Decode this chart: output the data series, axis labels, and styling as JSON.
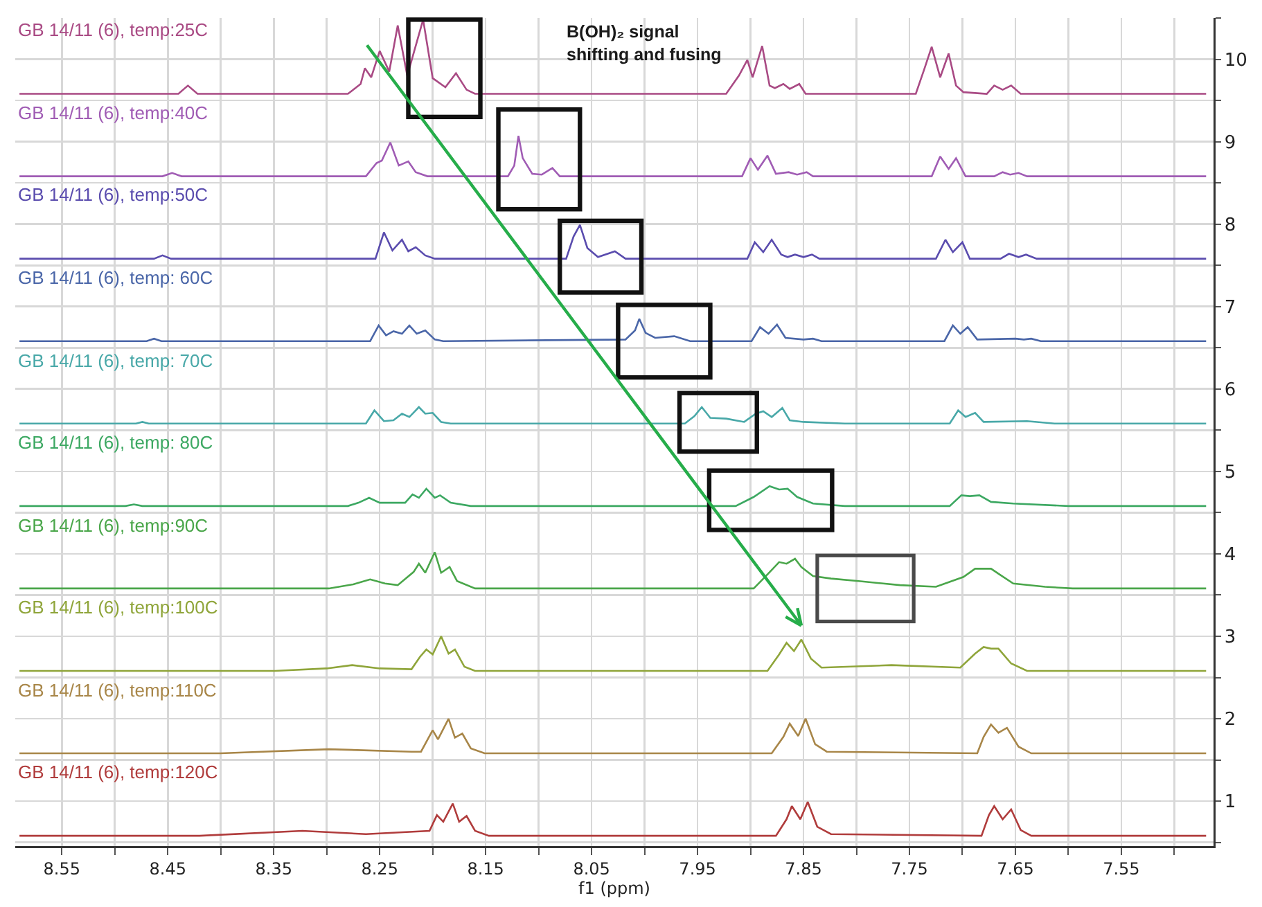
{
  "chart_data": {
    "type": "line",
    "xlabel": "f1 (ppm)",
    "annotations": [
      "B(OH)₂ signal shifting and fusing"
    ],
    "xlim": [
      8.594,
      7.463
    ],
    "ylim": [
      0.455,
      10.5
    ],
    "xticks": [
      8.55,
      {
        "value": 8.5,
        "label": null
      },
      8.45,
      {
        "value": 8.4,
        "label": null
      },
      8.35,
      {
        "value": 8.3,
        "label": null
      },
      8.25,
      {
        "value": 8.2,
        "label": null
      },
      8.15,
      {
        "value": 8.1,
        "label": null
      },
      8.05,
      {
        "value": 8.0,
        "label": null
      },
      7.95,
      {
        "value": 7.9,
        "label": null
      },
      7.85,
      {
        "value": 7.8,
        "label": null
      },
      7.75,
      {
        "value": 7.7,
        "label": null
      },
      7.65,
      {
        "value": 7.6,
        "label": null
      },
      7.55,
      {
        "value": 7.5,
        "label": null
      }
    ],
    "yticks": [
      {
        "value": 0.5,
        "label": null
      },
      1,
      {
        "value": 1.5,
        "label": null
      },
      2,
      {
        "value": 2.5,
        "label": null
      },
      3,
      {
        "value": 3.5,
        "label": null
      },
      4,
      {
        "value": 4.5,
        "label": null
      },
      5,
      {
        "value": 5.5,
        "label": null
      },
      6,
      {
        "value": 6.5,
        "label": null
      },
      7,
      {
        "value": 7.5,
        "label": null
      },
      8,
      {
        "value": 8.5,
        "label": null
      },
      9,
      {
        "value": 9.5,
        "label": null
      },
      10,
      {
        "value": 10.5,
        "label": null
      }
    ],
    "grid": true,
    "legend": false,
    "series": [
      {
        "name": "GB 14/11 (6), temp:25C",
        "color": "#a94a84",
        "x": [
          8.59,
          8.44,
          8.431,
          8.422,
          8.28,
          8.268,
          8.264,
          8.258,
          8.25,
          8.241,
          8.233,
          8.224,
          8.209,
          8.2,
          8.188,
          8.178,
          8.168,
          8.16,
          7.923,
          7.911,
          7.903,
          7.898,
          7.889,
          7.882,
          7.877,
          7.869,
          7.863,
          7.854,
          7.848,
          7.744,
          7.736,
          7.729,
          7.721,
          7.713,
          7.706,
          7.699,
          7.677,
          7.67,
          7.662,
          7.654,
          7.645,
          7.47
        ],
        "values": [
          9.58,
          9.58,
          9.68,
          9.58,
          9.58,
          9.7,
          9.89,
          9.78,
          10.1,
          9.85,
          10.41,
          9.8,
          10.48,
          9.77,
          9.66,
          9.83,
          9.63,
          9.58,
          9.58,
          9.8,
          9.99,
          9.78,
          10.16,
          9.68,
          9.65,
          9.7,
          9.64,
          9.7,
          9.58,
          9.58,
          9.88,
          10.15,
          9.78,
          10.07,
          9.68,
          9.6,
          9.58,
          9.68,
          9.63,
          9.68,
          9.58,
          9.58
        ]
      },
      {
        "name": "GB 14/11 (6), temp:40C",
        "color": "#a05cb4",
        "x": [
          8.59,
          8.455,
          8.446,
          8.437,
          8.263,
          8.253,
          8.248,
          8.24,
          8.232,
          8.223,
          8.216,
          8.205,
          8.129,
          8.123,
          8.119,
          8.115,
          8.106,
          8.097,
          8.087,
          8.08,
          7.908,
          7.9,
          7.893,
          7.884,
          7.876,
          7.864,
          7.856,
          7.847,
          7.841,
          7.729,
          7.721,
          7.713,
          7.706,
          7.697,
          7.67,
          7.662,
          7.655,
          7.647,
          7.639,
          7.47
        ],
        "values": [
          8.58,
          8.58,
          8.62,
          8.58,
          8.58,
          8.74,
          8.77,
          8.99,
          8.71,
          8.76,
          8.63,
          8.58,
          8.58,
          8.71,
          9.07,
          8.8,
          8.61,
          8.6,
          8.68,
          8.58,
          8.58,
          8.8,
          8.66,
          8.83,
          8.61,
          8.63,
          8.6,
          8.63,
          8.58,
          8.58,
          8.82,
          8.67,
          8.8,
          8.58,
          8.58,
          8.63,
          8.6,
          8.62,
          8.58,
          8.58
        ]
      },
      {
        "name": "GB 14/11 (6), temp:50C",
        "color": "#5a4cae",
        "x": [
          8.59,
          8.463,
          8.455,
          8.447,
          8.254,
          8.246,
          8.238,
          8.229,
          8.223,
          8.216,
          8.207,
          8.198,
          8.074,
          8.067,
          8.061,
          8.054,
          8.044,
          8.028,
          8.018,
          7.903,
          7.896,
          7.888,
          7.88,
          7.871,
          7.865,
          7.858,
          7.85,
          7.842,
          7.835,
          7.725,
          7.716,
          7.709,
          7.7,
          7.693,
          7.664,
          7.656,
          7.647,
          7.64,
          7.63,
          7.47
        ],
        "values": [
          7.58,
          7.58,
          7.62,
          7.58,
          7.58,
          7.9,
          7.68,
          7.81,
          7.67,
          7.72,
          7.62,
          7.58,
          7.58,
          7.85,
          7.99,
          7.71,
          7.6,
          7.67,
          7.58,
          7.58,
          7.78,
          7.66,
          7.81,
          7.63,
          7.6,
          7.63,
          7.6,
          7.63,
          7.58,
          7.58,
          7.81,
          7.66,
          7.78,
          7.58,
          7.58,
          7.64,
          7.6,
          7.63,
          7.58,
          7.58
        ]
      },
      {
        "name": "GB 14/11 (6), temp: 60C",
        "color": "#4a66a8",
        "x": [
          8.59,
          8.47,
          8.463,
          8.456,
          8.259,
          8.251,
          8.244,
          8.237,
          8.229,
          8.222,
          8.215,
          8.207,
          8.198,
          8.19,
          8.018,
          8.009,
          8.005,
          7.999,
          7.99,
          7.972,
          7.957,
          7.899,
          7.891,
          7.883,
          7.875,
          7.867,
          7.85,
          7.841,
          7.833,
          7.717,
          7.709,
          7.702,
          7.695,
          7.686,
          7.65,
          7.642,
          7.635,
          7.626,
          7.47
        ],
        "values": [
          6.58,
          6.58,
          6.61,
          6.58,
          6.58,
          6.77,
          6.65,
          6.7,
          6.67,
          6.77,
          6.67,
          6.71,
          6.6,
          6.58,
          6.6,
          6.71,
          6.85,
          6.68,
          6.62,
          6.64,
          6.58,
          6.58,
          6.75,
          6.67,
          6.78,
          6.62,
          6.6,
          6.61,
          6.58,
          6.58,
          6.77,
          6.67,
          6.75,
          6.6,
          6.61,
          6.6,
          6.61,
          6.58,
          6.58
        ]
      },
      {
        "name": "GB 14/11 (6), temp: 70C",
        "color": "#48a8a8",
        "x": [
          8.59,
          8.48,
          8.474,
          8.468,
          8.263,
          8.255,
          8.246,
          8.237,
          8.229,
          8.222,
          8.213,
          8.207,
          8.2,
          8.192,
          8.183,
          7.962,
          7.953,
          7.946,
          7.938,
          7.923,
          7.906,
          7.895,
          7.888,
          7.88,
          7.87,
          7.863,
          7.85,
          7.811,
          7.712,
          7.704,
          7.697,
          7.688,
          7.68,
          7.639,
          7.613,
          7.47
        ],
        "values": [
          5.58,
          5.58,
          5.6,
          5.58,
          5.58,
          5.74,
          5.61,
          5.62,
          5.7,
          5.66,
          5.78,
          5.7,
          5.71,
          5.6,
          5.58,
          5.58,
          5.67,
          5.78,
          5.65,
          5.64,
          5.6,
          5.7,
          5.73,
          5.66,
          5.77,
          5.62,
          5.6,
          5.58,
          5.58,
          5.74,
          5.66,
          5.71,
          5.6,
          5.61,
          5.58,
          5.58
        ]
      },
      {
        "name": "GB 14/11 (6), temp: 80C",
        "color": "#3ca862",
        "x": [
          8.59,
          8.49,
          8.482,
          8.474,
          8.28,
          8.27,
          8.26,
          8.25,
          8.226,
          8.219,
          8.213,
          8.206,
          8.198,
          8.193,
          8.183,
          8.164,
          7.914,
          7.897,
          7.882,
          7.873,
          7.865,
          7.856,
          7.841,
          7.811,
          7.712,
          7.701,
          7.693,
          7.684,
          7.673,
          7.652,
          7.6,
          7.47
        ],
        "values": [
          4.58,
          4.58,
          4.6,
          4.58,
          4.58,
          4.62,
          4.68,
          4.62,
          4.62,
          4.72,
          4.68,
          4.79,
          4.68,
          4.71,
          4.62,
          4.58,
          4.58,
          4.69,
          4.82,
          4.78,
          4.79,
          4.69,
          4.61,
          4.58,
          4.58,
          4.71,
          4.7,
          4.71,
          4.63,
          4.61,
          4.58,
          4.58
        ]
      },
      {
        "name": "GB 14/11 (6), temp:90C",
        "color": "#4aa64a",
        "x": [
          8.59,
          8.298,
          8.275,
          8.259,
          8.245,
          8.233,
          8.218,
          8.213,
          8.207,
          8.198,
          8.192,
          8.184,
          8.177,
          8.16,
          7.897,
          7.884,
          7.873,
          7.866,
          7.858,
          7.852,
          7.841,
          7.824,
          7.798,
          7.759,
          7.725,
          7.699,
          7.688,
          7.673,
          7.665,
          7.652,
          7.622,
          7.596,
          7.47
        ],
        "values": [
          3.58,
          3.58,
          3.63,
          3.69,
          3.64,
          3.62,
          3.78,
          3.88,
          3.77,
          4.02,
          3.77,
          3.84,
          3.67,
          3.58,
          3.58,
          3.75,
          3.9,
          3.88,
          3.94,
          3.84,
          3.73,
          3.7,
          3.67,
          3.62,
          3.6,
          3.72,
          3.82,
          3.82,
          3.75,
          3.64,
          3.6,
          3.58,
          3.58
        ]
      },
      {
        "name": "GB 14/11 (6), temp:100C",
        "color": "#8fa53a",
        "x": [
          8.59,
          8.349,
          8.3,
          8.276,
          8.25,
          8.22,
          8.212,
          8.206,
          8.2,
          8.192,
          8.185,
          8.179,
          8.17,
          8.16,
          7.884,
          7.873,
          7.866,
          7.859,
          7.852,
          7.843,
          7.833,
          7.767,
          7.702,
          7.688,
          7.68,
          7.673,
          7.666,
          7.654,
          7.639,
          7.47
        ],
        "values": [
          2.58,
          2.58,
          2.61,
          2.65,
          2.61,
          2.6,
          2.75,
          2.84,
          2.78,
          3.0,
          2.79,
          2.84,
          2.63,
          2.58,
          2.58,
          2.78,
          2.92,
          2.82,
          2.96,
          2.73,
          2.62,
          2.65,
          2.62,
          2.79,
          2.87,
          2.85,
          2.85,
          2.67,
          2.58,
          2.58
        ]
      },
      {
        "name": "GB 14/11 (6), temp:110C",
        "color": "#a88648",
        "x": [
          8.59,
          8.4,
          8.298,
          8.22,
          8.211,
          8.2,
          8.195,
          8.185,
          8.179,
          8.172,
          8.164,
          8.151,
          7.88,
          7.869,
          7.863,
          7.855,
          7.848,
          7.839,
          7.828,
          7.686,
          7.68,
          7.673,
          7.666,
          7.658,
          7.647,
          7.635,
          7.47
        ],
        "values": [
          1.58,
          1.58,
          1.63,
          1.6,
          1.6,
          1.86,
          1.75,
          2.0,
          1.77,
          1.82,
          1.64,
          1.58,
          1.58,
          1.78,
          1.94,
          1.79,
          2.0,
          1.69,
          1.6,
          1.58,
          1.78,
          1.93,
          1.83,
          1.89,
          1.66,
          1.58,
          1.58
        ]
      },
      {
        "name": "GB 14/11 (6), temp:120C",
        "color": "#b03c3c",
        "x": [
          8.59,
          8.42,
          8.323,
          8.263,
          8.203,
          8.196,
          8.19,
          8.181,
          8.175,
          8.168,
          8.16,
          8.147,
          7.876,
          7.866,
          7.861,
          7.853,
          7.846,
          7.837,
          7.824,
          7.682,
          7.675,
          7.67,
          7.662,
          7.654,
          7.645,
          7.635,
          7.47
        ],
        "values": [
          0.58,
          0.58,
          0.64,
          0.6,
          0.64,
          0.83,
          0.75,
          0.97,
          0.75,
          0.82,
          0.64,
          0.58,
          0.58,
          0.78,
          0.94,
          0.78,
          0.99,
          0.69,
          0.6,
          0.58,
          0.83,
          0.94,
          0.78,
          0.9,
          0.65,
          0.58,
          0.58
        ]
      }
    ]
  }
}
